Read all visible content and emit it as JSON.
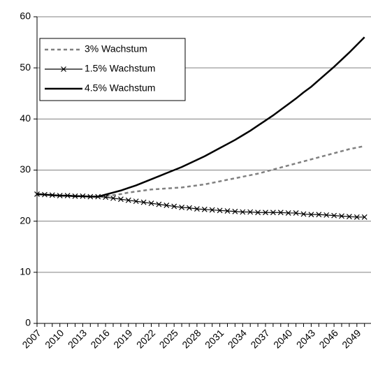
{
  "chart_data": {
    "type": "line",
    "categories": [
      "2007",
      null,
      null,
      "2010",
      null,
      null,
      "2013",
      null,
      null,
      "2016",
      null,
      null,
      "2019",
      null,
      null,
      "2022",
      null,
      null,
      "2025",
      null,
      null,
      "2028",
      null,
      null,
      "2031",
      null,
      null,
      "2034",
      null,
      null,
      "2037",
      null,
      null,
      "2040",
      null,
      null,
      "2043",
      null,
      null,
      "2046",
      null,
      null,
      "2049",
      null
    ],
    "series": [
      {
        "name": "3% Wachstum",
        "color": "#808080",
        "dash": true,
        "values": [
          25.3,
          25.2,
          25.1,
          25.0,
          25.0,
          24.9,
          24.9,
          24.8,
          24.8,
          24.9,
          25.1,
          25.3,
          25.6,
          25.8,
          26.0,
          26.2,
          26.3,
          26.4,
          26.5,
          26.6,
          26.8,
          27.0,
          27.2,
          27.5,
          27.8,
          28.1,
          28.4,
          28.7,
          29.0,
          29.3,
          29.7,
          30.1,
          30.5,
          30.9,
          31.3,
          31.7,
          32.1,
          32.5,
          32.9,
          33.3,
          33.7,
          34.1,
          34.4,
          34.7
        ]
      },
      {
        "name": "1.5% Wachstum",
        "color": "#000000",
        "marker": "x",
        "values": [
          25.3,
          25.2,
          25.1,
          25.0,
          25.0,
          24.9,
          24.9,
          24.8,
          24.8,
          24.7,
          24.5,
          24.3,
          24.1,
          23.9,
          23.7,
          23.5,
          23.3,
          23.1,
          22.9,
          22.7,
          22.6,
          22.4,
          22.3,
          22.2,
          22.1,
          22.0,
          21.9,
          21.8,
          21.8,
          21.7,
          21.7,
          21.7,
          21.7,
          21.6,
          21.6,
          21.4,
          21.3,
          21.3,
          21.2,
          21.1,
          21.0,
          20.9,
          20.8,
          20.8
        ]
      },
      {
        "name": "4.5% Wachstum",
        "color": "#000000",
        "bold": true,
        "values": [
          25.3,
          25.2,
          25.1,
          25.0,
          25.0,
          24.9,
          24.9,
          24.8,
          24.8,
          25.2,
          25.6,
          26.0,
          26.5,
          27.0,
          27.6,
          28.2,
          28.8,
          29.4,
          30.0,
          30.6,
          31.3,
          32.0,
          32.7,
          33.5,
          34.3,
          35.1,
          35.9,
          36.8,
          37.7,
          38.7,
          39.7,
          40.7,
          41.8,
          42.9,
          44.0,
          45.2,
          46.3,
          47.6,
          48.9,
          50.2,
          51.6,
          53.0,
          54.5,
          56.0
        ]
      }
    ],
    "ylim": [
      0,
      60
    ],
    "yticks": [
      0,
      10,
      20,
      30,
      40,
      50,
      60
    ],
    "grid": true
  }
}
